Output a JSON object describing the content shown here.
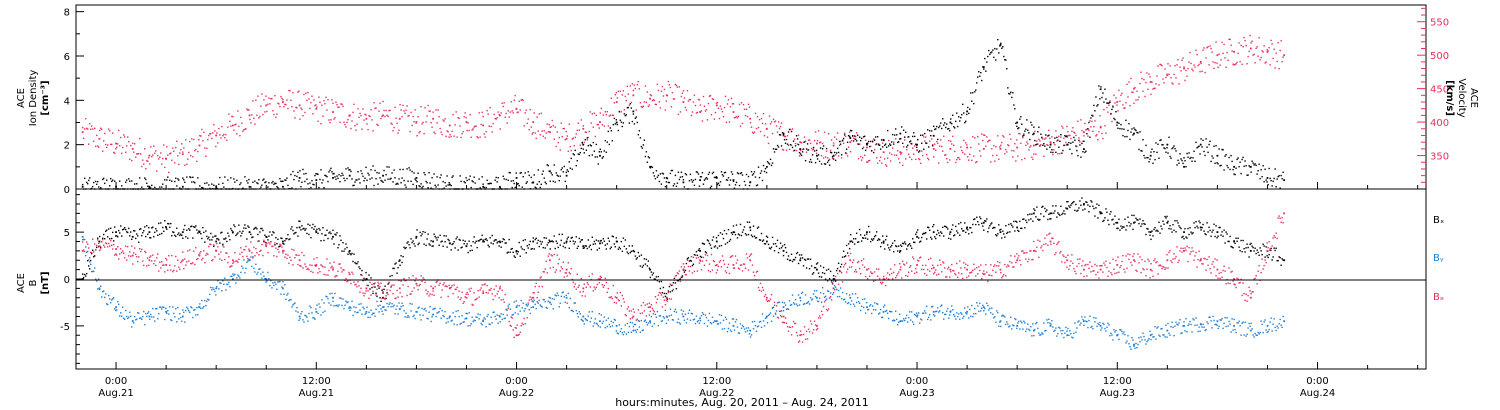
{
  "figure": {
    "xlabel": "hours:minutes, Aug. 20, 2011 – Aug. 24, 2011",
    "x_ticks": [
      {
        "time": "0:00",
        "date": "Aug.21",
        "hours": 24
      },
      {
        "time": "12:00",
        "date": "Aug.21",
        "hours": 36
      },
      {
        "time": "0:00",
        "date": "Aug.22",
        "hours": 48
      },
      {
        "time": "12:00",
        "date": "Aug.22",
        "hours": 60
      },
      {
        "time": "0:00",
        "date": "Aug.23",
        "hours": 72
      },
      {
        "time": "12:00",
        "date": "Aug.23",
        "hours": 84
      },
      {
        "time": "0:00",
        "date": "Aug.24",
        "hours": 96
      }
    ],
    "x_unit": "hours since Aug. 20, 2011 0:00",
    "colors": {
      "black": "#000000",
      "pink": "#e8305a",
      "blue": "#1f7fd4"
    }
  },
  "chart_data": [
    {
      "type": "scatter",
      "panel": "top",
      "xlim": [
        21.6,
        102.5
      ],
      "left_axis": {
        "label": [
          "ACE",
          "Ion Density",
          "[cm⁻³]"
        ],
        "ticks": [
          "0",
          "2",
          "4",
          "6",
          "8"
        ],
        "lim": [
          0,
          8.3
        ]
      },
      "right_axis": {
        "label": [
          "ACE",
          "Velocity",
          "[km/s]"
        ],
        "ticks": [
          "350",
          "400",
          "450",
          "500",
          "550"
        ],
        "lim": [
          300,
          575
        ],
        "color": "#e8305a"
      },
      "series": [
        {
          "axis": "left",
          "color": "#000000",
          "x": [
            22,
            24,
            26,
            28,
            30,
            32,
            34,
            35,
            36,
            37,
            38,
            40,
            42,
            44,
            46,
            47,
            48,
            49,
            50,
            51,
            52,
            53,
            54,
            55,
            56,
            57,
            58,
            59,
            60,
            61,
            62,
            63,
            64,
            65,
            66,
            67,
            68,
            69,
            70,
            71,
            72,
            73,
            74,
            75,
            76,
            77,
            78,
            79,
            80,
            81,
            82,
            83,
            84,
            85,
            86,
            87,
            88,
            89,
            90,
            91,
            92,
            93,
            94
          ],
          "y": [
            0.1,
            0.1,
            0.1,
            0.1,
            0.1,
            0.1,
            0.1,
            0.5,
            0.4,
            0.5,
            0.6,
            0.6,
            0.5,
            0.2,
            0.1,
            0.1,
            0.5,
            0.3,
            0.8,
            0.6,
            2.0,
            1.5,
            3.0,
            3.5,
            1.0,
            0.5,
            0.3,
            0.4,
            0.5,
            0.4,
            0.3,
            1.0,
            2.5,
            1.8,
            1.5,
            1.5,
            2.3,
            2.0,
            2.2,
            2.5,
            2.0,
            2.4,
            3.0,
            3.5,
            5.5,
            6.5,
            3.0,
            2.5,
            2.0,
            2.0,
            1.8,
            4.5,
            3.0,
            2.5,
            1.5,
            2.0,
            1.0,
            2.0,
            1.5,
            1.0,
            1.0,
            0.5,
            0.4
          ]
        },
        {
          "axis": "right",
          "color": "#e8305a",
          "x": [
            22,
            23,
            24,
            25,
            26,
            27,
            28,
            29,
            30,
            31,
            32,
            33,
            34,
            35,
            36,
            37,
            38,
            39,
            40,
            41,
            42,
            43,
            44,
            45,
            46,
            47,
            48,
            49,
            50,
            51,
            52,
            53,
            54,
            55,
            56,
            57,
            58,
            59,
            60,
            61,
            62,
            63,
            64,
            65,
            66,
            67,
            68,
            69,
            70,
            71,
            72,
            73,
            74,
            75,
            76,
            77,
            78,
            79,
            80,
            81,
            82,
            83,
            84,
            85,
            86,
            87,
            88,
            89,
            90,
            91,
            92,
            93,
            94
          ],
          "y": [
            385,
            375,
            368,
            360,
            350,
            345,
            352,
            365,
            380,
            395,
            410,
            425,
            430,
            425,
            420,
            415,
            410,
            405,
            410,
            405,
            400,
            405,
            395,
            400,
            395,
            410,
            420,
            400,
            385,
            375,
            390,
            400,
            430,
            440,
            435,
            440,
            430,
            415,
            425,
            415,
            405,
            390,
            380,
            370,
            368,
            365,
            370,
            362,
            355,
            355,
            358,
            360,
            360,
            362,
            360,
            360,
            362,
            365,
            370,
            378,
            385,
            392,
            430,
            450,
            460,
            470,
            480,
            490,
            500,
            505,
            510,
            505,
            500
          ]
        }
      ]
    },
    {
      "type": "scatter",
      "panel": "bottom",
      "xlim": [
        21.6,
        102.5
      ],
      "left_axis": {
        "label": [
          "ACE",
          "B",
          "[nT]"
        ],
        "ticks": [
          "-5",
          "0",
          "5"
        ],
        "lim": [
          -9.6,
          9.6
        ]
      },
      "zero_line": true,
      "legend": [
        "Bₓ",
        "Bᵧ",
        "Bₔ"
      ],
      "series": [
        {
          "name": "Bx",
          "color": "#000000",
          "x": [
            22,
            23,
            24,
            25,
            26,
            27,
            28,
            29,
            30,
            31,
            32,
            33,
            34,
            35,
            36,
            37,
            38,
            39,
            40,
            41,
            42,
            43,
            44,
            45,
            46,
            47,
            48,
            49,
            50,
            51,
            52,
            53,
            54,
            55,
            56,
            57,
            58,
            59,
            60,
            61,
            62,
            63,
            64,
            65,
            66,
            67,
            68,
            69,
            70,
            71,
            72,
            73,
            74,
            75,
            76,
            77,
            78,
            79,
            80,
            81,
            82,
            83,
            84,
            85,
            86,
            87,
            88,
            89,
            90,
            91,
            92,
            93,
            94
          ],
          "y": [
            0,
            4,
            5,
            4.5,
            5,
            5.5,
            5,
            5,
            4,
            5,
            5,
            4.5,
            4,
            5.5,
            5,
            4.5,
            3,
            0,
            -2,
            2,
            4.5,
            4,
            3.8,
            3.5,
            4,
            4,
            3,
            4,
            4,
            4,
            3.5,
            3.8,
            4,
            3,
            1,
            -2,
            1,
            3,
            4,
            5,
            5.5,
            4,
            3,
            2,
            1,
            0,
            4,
            5,
            4,
            3,
            4.5,
            5,
            5,
            5.5,
            6,
            5,
            5.5,
            7,
            7,
            7.5,
            8,
            7,
            6,
            6,
            5,
            6,
            5,
            5.5,
            5,
            4,
            3,
            3,
            2
          ]
        },
        {
          "name": "By",
          "color": "#1f7fd4",
          "x": [
            22,
            23,
            24,
            25,
            26,
            27,
            28,
            29,
            30,
            31,
            32,
            33,
            34,
            35,
            36,
            37,
            38,
            39,
            40,
            41,
            42,
            43,
            44,
            45,
            46,
            47,
            48,
            49,
            50,
            51,
            52,
            53,
            54,
            55,
            56,
            57,
            58,
            59,
            60,
            61,
            62,
            63,
            64,
            65,
            66,
            67,
            68,
            69,
            70,
            71,
            72,
            73,
            74,
            75,
            76,
            77,
            78,
            79,
            80,
            81,
            82,
            83,
            84,
            85,
            86,
            87,
            88,
            89,
            90,
            91,
            92,
            93,
            94
          ],
          "y": [
            4.5,
            -1,
            -3,
            -4.5,
            -4,
            -3.5,
            -4,
            -3,
            -1,
            0,
            2,
            0,
            -1,
            -4,
            -3.5,
            -2,
            -3,
            -3.5,
            -3,
            -3.2,
            -3.5,
            -3.8,
            -4,
            -4.2,
            -4.5,
            -4,
            -3,
            -3,
            -2.5,
            -2,
            -4,
            -4.5,
            -5,
            -5.5,
            -4.5,
            -4,
            -4,
            -4.2,
            -4.5,
            -5,
            -5.5,
            -4,
            -3,
            -2,
            -2,
            -1,
            -2,
            -3,
            -3.5,
            -4.5,
            -4,
            -3.5,
            -3.5,
            -3.5,
            -3,
            -4.5,
            -5,
            -5.5,
            -5,
            -6,
            -4.5,
            -5,
            -6,
            -7,
            -6,
            -5.5,
            -5,
            -4.8,
            -4.5,
            -5,
            -5.5,
            -5,
            -4.5
          ]
        },
        {
          "name": "Bz",
          "color": "#e8305a",
          "x": [
            22,
            23,
            24,
            25,
            26,
            27,
            28,
            29,
            30,
            31,
            32,
            33,
            34,
            35,
            36,
            37,
            38,
            39,
            40,
            41,
            42,
            43,
            44,
            45,
            46,
            47,
            48,
            49,
            50,
            51,
            52,
            53,
            54,
            55,
            56,
            57,
            58,
            59,
            60,
            61,
            62,
            63,
            64,
            65,
            66,
            67,
            68,
            69,
            70,
            71,
            72,
            73,
            74,
            75,
            76,
            77,
            78,
            79,
            80,
            81,
            82,
            83,
            84,
            85,
            86,
            87,
            88,
            89,
            90,
            91,
            92,
            93,
            94
          ],
          "y": [
            3,
            3.5,
            3.2,
            2.5,
            2,
            1.5,
            2,
            2.5,
            3,
            2,
            3,
            3.5,
            3,
            2,
            1.5,
            1,
            0.5,
            -1,
            -1.5,
            -1,
            -0.5,
            -1,
            -1,
            -2,
            -1.5,
            -1,
            -6,
            -2,
            2,
            1,
            -1,
            0,
            -2,
            -4,
            -3,
            -2,
            1,
            2,
            1.5,
            1.5,
            2,
            -2,
            -4,
            -6,
            -5,
            -1,
            2,
            1,
            0,
            1,
            1.5,
            1.2,
            1,
            1,
            0.5,
            1,
            2,
            3,
            4,
            2,
            1,
            1,
            1.5,
            2,
            1,
            2,
            3,
            2,
            1,
            0,
            -2,
            3,
            7
          ]
        }
      ]
    }
  ]
}
